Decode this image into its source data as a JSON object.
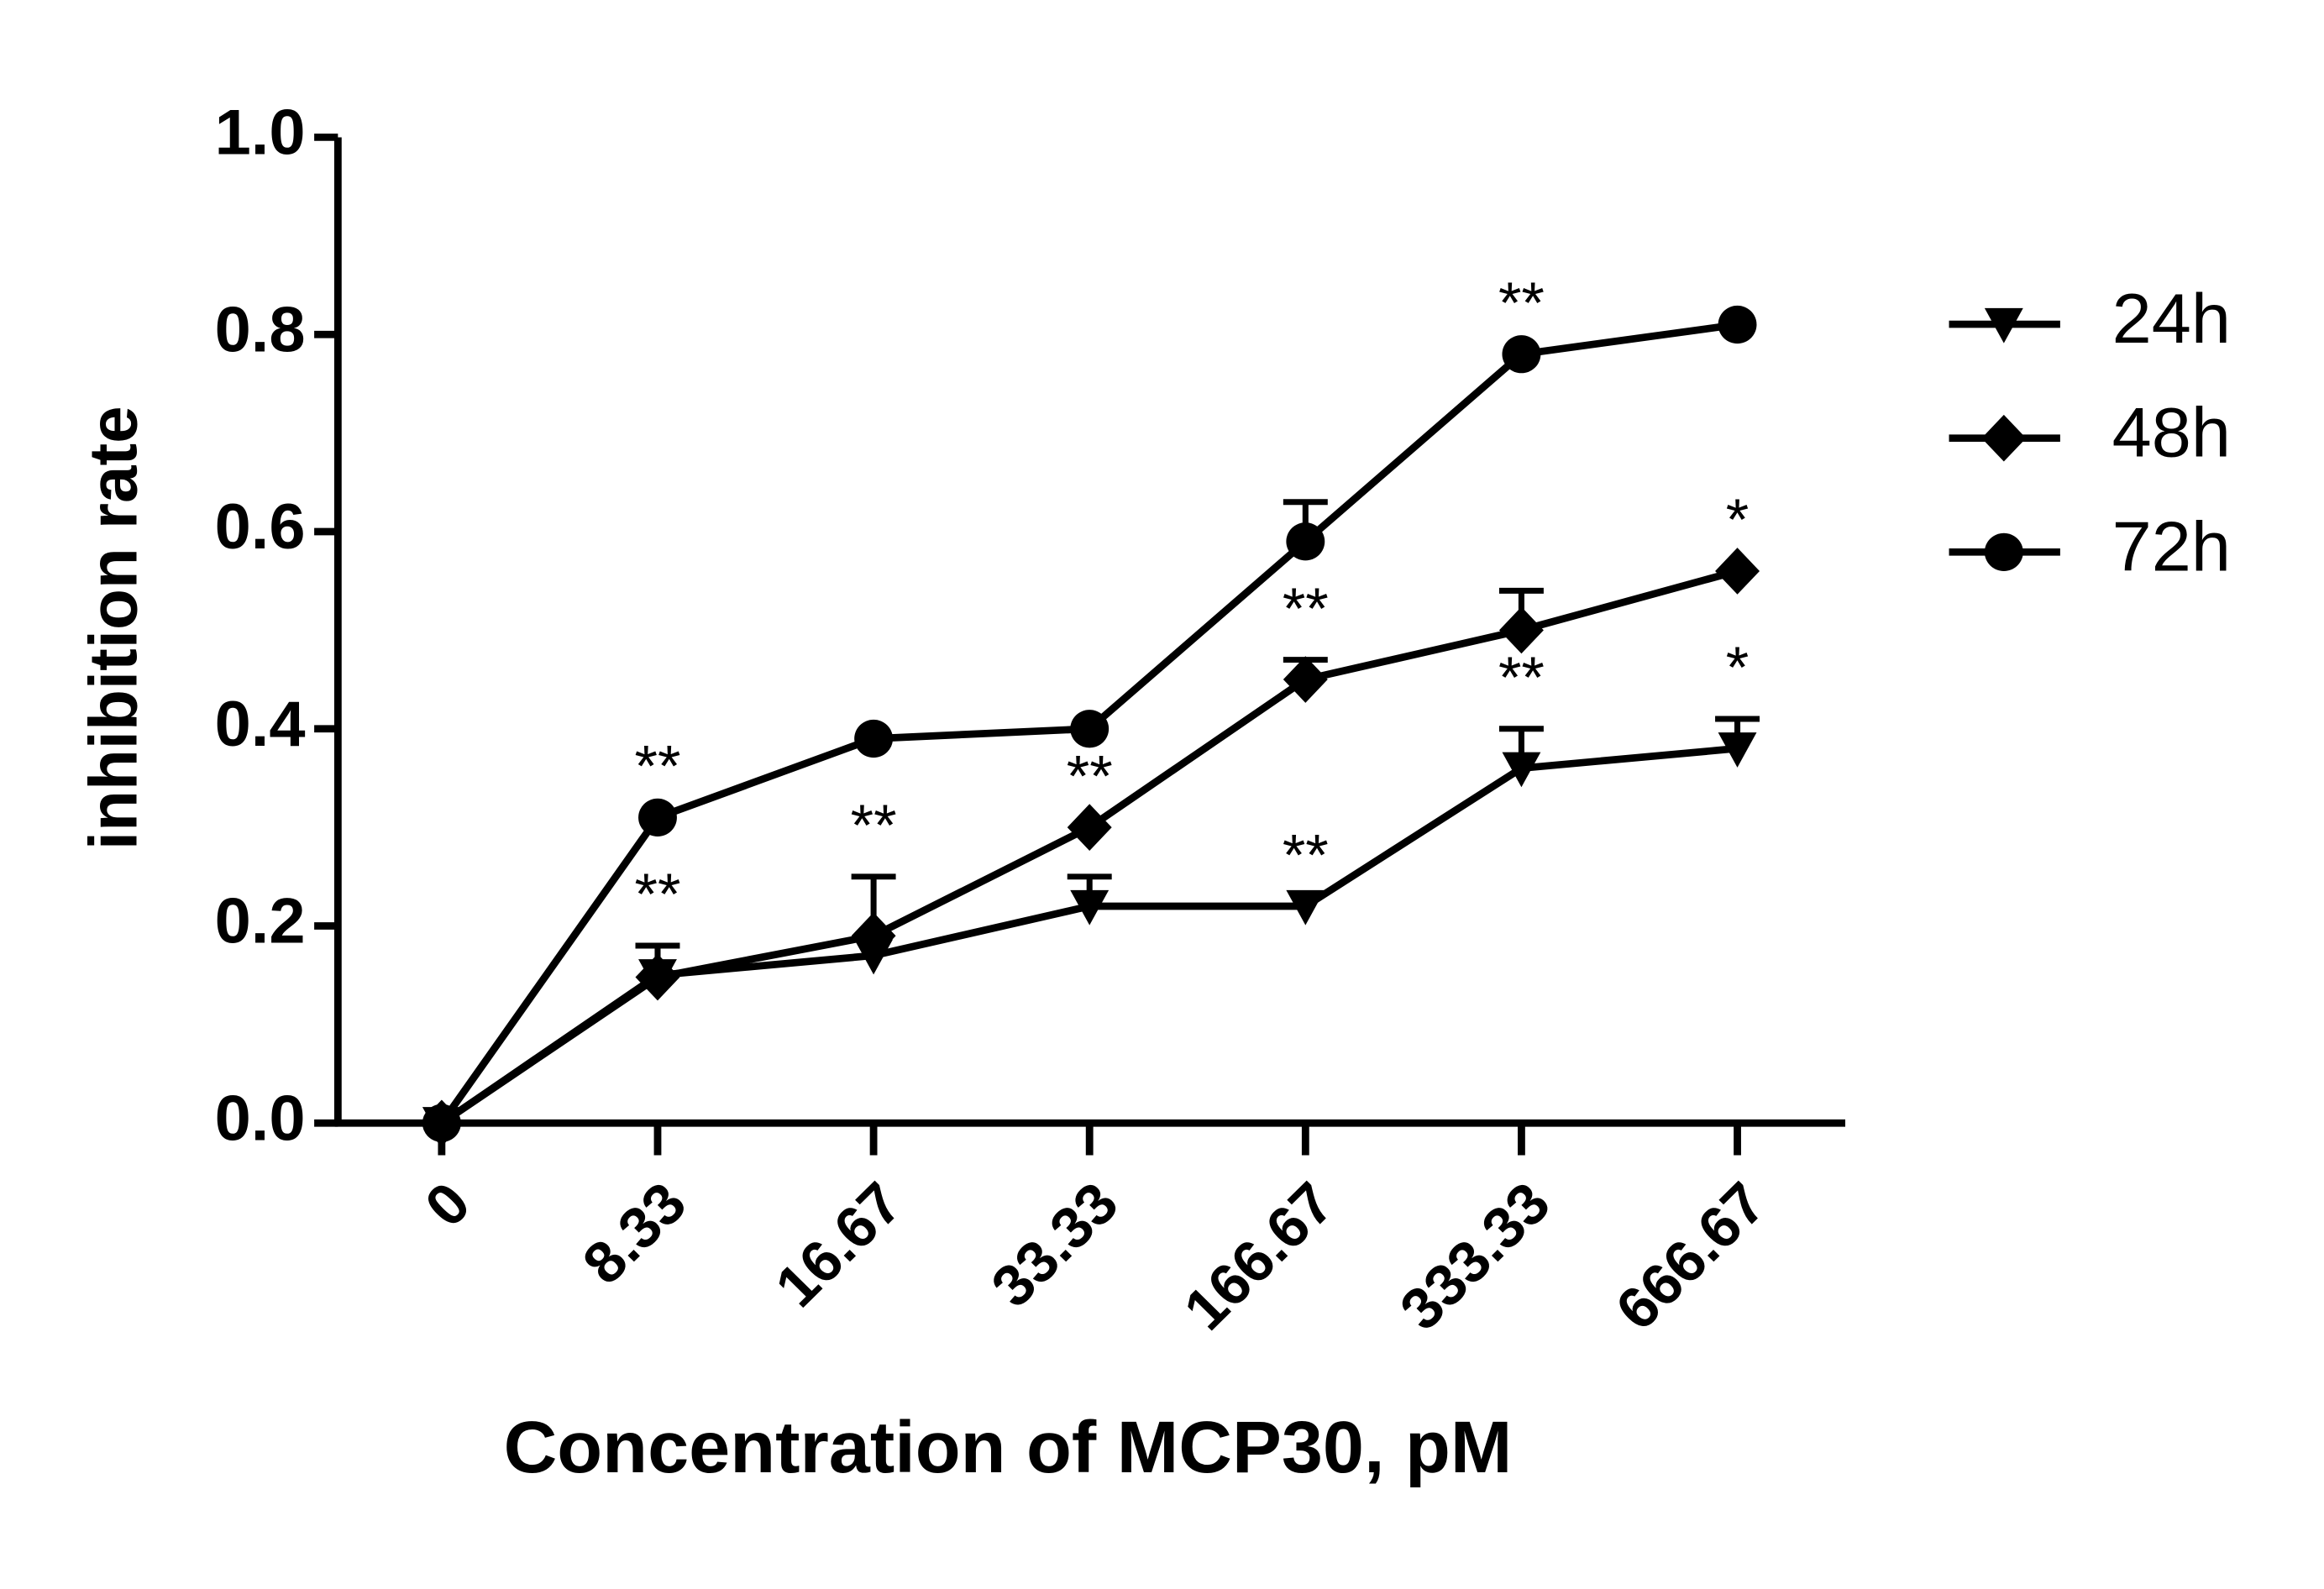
{
  "chart_data": {
    "type": "line",
    "xlabel": "Concentration of MCP30, pM",
    "ylabel": "inhibition rate",
    "categories": [
      "0",
      "8.33",
      "16.67",
      "33.33",
      "166.67",
      "333.33",
      "666.67"
    ],
    "ylim": [
      0,
      1
    ],
    "yticks": [
      {
        "value": 0,
        "label": "0.0"
      },
      0.2,
      0.4,
      0.6,
      0.8,
      {
        "value": 1,
        "label": "1.0"
      }
    ],
    "grid": false,
    "legend": "right",
    "series": [
      {
        "name": "24h",
        "color": "#000000",
        "marker": "triangle-down",
        "values": [
          0,
          0.15,
          0.17,
          0.22,
          0.22,
          0.36,
          0.38
        ],
        "errors": [
          null,
          0.03,
          null,
          0.03,
          null,
          0.04,
          0.03
        ]
      },
      {
        "name": "48h",
        "color": "#000000",
        "marker": "diamond",
        "values": [
          0,
          0.148,
          0.19,
          0.3,
          0.45,
          0.5,
          0.56
        ],
        "errors": [
          null,
          null,
          0.06,
          null,
          0.02,
          0.04,
          null
        ]
      },
      {
        "name": "72h",
        "color": "#000000",
        "marker": "circle",
        "values": [
          0,
          0.31,
          0.39,
          0.4,
          0.59,
          0.78,
          0.81
        ],
        "errors": [
          null,
          null,
          null,
          null,
          0.04,
          null,
          null
        ]
      }
    ],
    "annotations": [
      {
        "text": "**",
        "category": "8.33",
        "series": "72h"
      },
      {
        "text": "**",
        "category": "8.33",
        "series": "24h"
      },
      {
        "text": "**",
        "category": "16.67",
        "series": "48h"
      },
      {
        "text": "**",
        "category": "33.33",
        "series": "48h"
      },
      {
        "text": "**",
        "category": "166.67",
        "series": "48h"
      },
      {
        "text": "**",
        "category": "166.67",
        "series": "24h"
      },
      {
        "text": "**",
        "category": "333.33",
        "series": "72h"
      },
      {
        "text": "**",
        "category": "333.33",
        "series": "24h"
      },
      {
        "text": "*",
        "category": "666.67",
        "series": "48h"
      },
      {
        "text": "*",
        "category": "666.67",
        "series": "24h"
      }
    ]
  }
}
